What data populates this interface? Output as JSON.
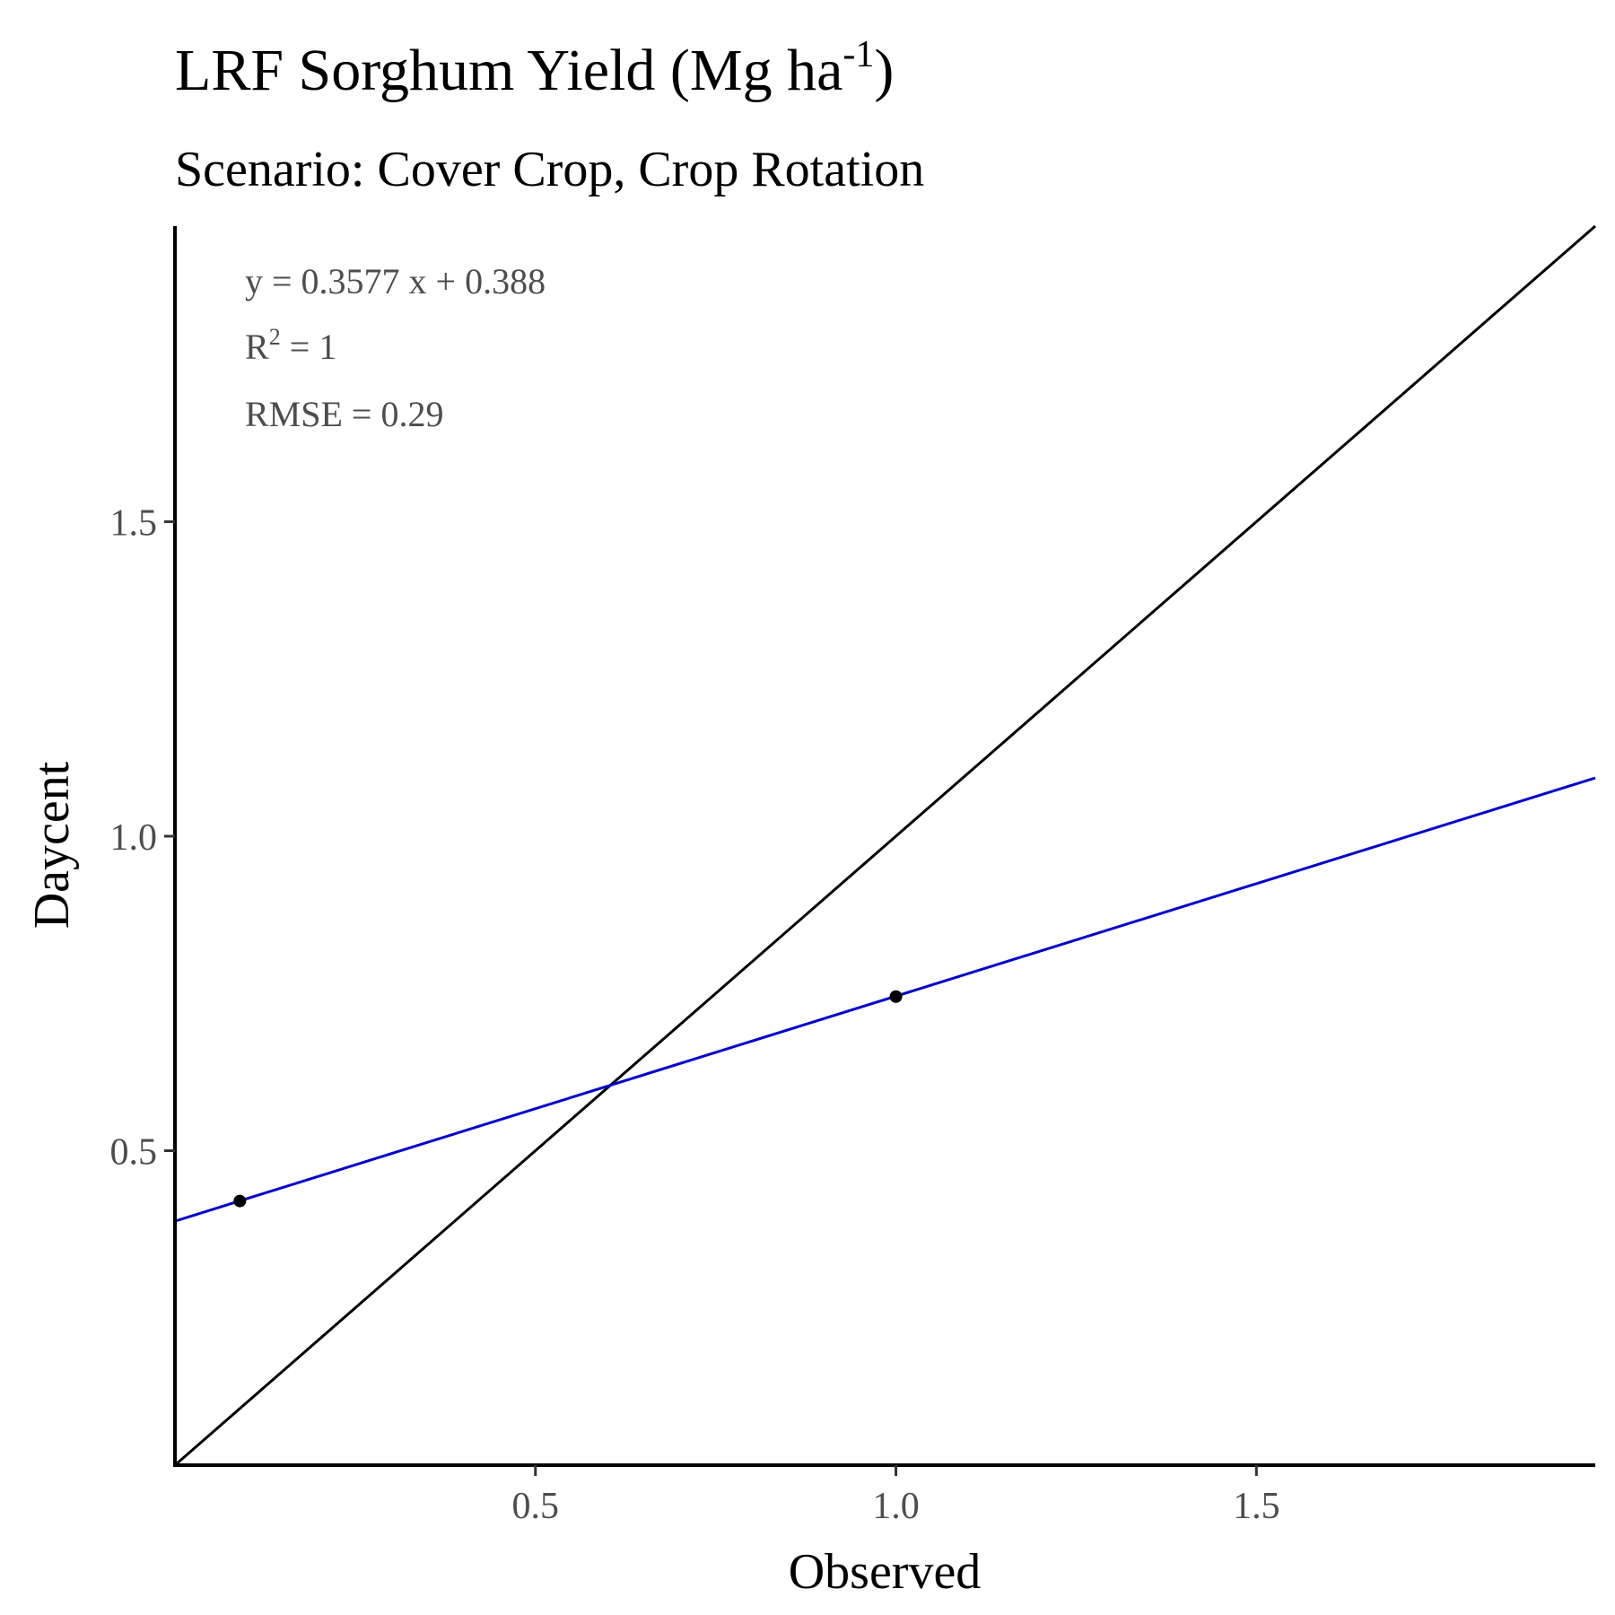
{
  "chart_data": {
    "type": "scatter",
    "title": "LRF Sorghum Yield (Mg ha",
    "title_sup": "-1",
    "title_end": ")",
    "subtitle": "Scenario: Cover Crop, Crop Rotation",
    "xlabel": "Observed",
    "ylabel": "Daycent",
    "xlim": [
      0.0,
      1.97
    ],
    "ylim": [
      0.0,
      1.97
    ],
    "xticks": [
      {
        "value": 0.5,
        "label": "0.5"
      },
      {
        "value": 1.0,
        "label": "1.0"
      },
      {
        "value": 1.5,
        "label": "1.5"
      }
    ],
    "yticks": [
      {
        "value": 0.5,
        "label": "0.5"
      },
      {
        "value": 1.0,
        "label": "1.0"
      },
      {
        "value": 1.5,
        "label": "1.5"
      }
    ],
    "points": [
      {
        "x": 0.09,
        "y": 0.42
      },
      {
        "x": 1.0,
        "y": 0.745
      }
    ],
    "point_color": "#000000",
    "one_to_one_line": {
      "slope": 1,
      "intercept": 0,
      "color": "#000000"
    },
    "regression_line": {
      "slope": 0.3577,
      "intercept": 0.388,
      "color": "#0000cc"
    },
    "annotations": {
      "equation": "y = 0.3577 x +  0.388",
      "r2_prefix": "R",
      "r2_sup": "2",
      "r2_suffix": " = 1",
      "rmse": "RMSE = 0.29"
    },
    "grid": false,
    "legend": "none"
  }
}
